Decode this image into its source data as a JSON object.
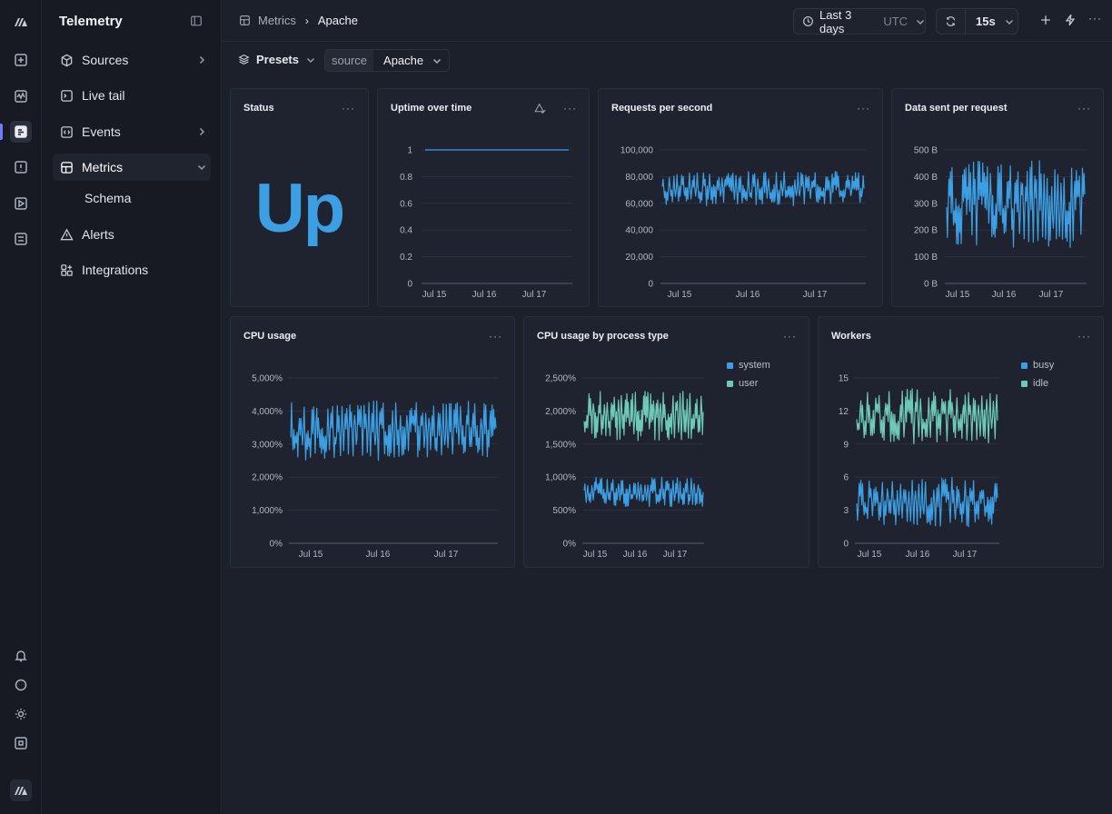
{
  "app": {
    "title": "Telemetry"
  },
  "sidebar": {
    "items": [
      {
        "label": "Sources",
        "icon": "cube-icon",
        "chevron": "right"
      },
      {
        "label": "Live tail",
        "icon": "terminal-icon",
        "chevron": ""
      },
      {
        "label": "Events",
        "icon": "code-icon",
        "chevron": "right"
      },
      {
        "label": "Metrics",
        "icon": "grid-icon",
        "chevron": "down",
        "active": true
      },
      {
        "label": "Alerts",
        "icon": "warning-icon",
        "chevron": ""
      },
      {
        "label": "Integrations",
        "icon": "integrations-icon",
        "chevron": ""
      }
    ],
    "sub_item": "Schema"
  },
  "breadcrumb": {
    "parent": "Metrics",
    "current": "Apache"
  },
  "time_range": {
    "label": "Last 3 days",
    "timezone": "UTC"
  },
  "refresh": {
    "interval": "15s"
  },
  "filters": {
    "presets_label": "Presets",
    "source_key": "source",
    "source_value": "Apache"
  },
  "colors": {
    "accent": "#6e7bff",
    "series_blue": "#3d9fe3",
    "series_teal": "#6ec9b9"
  },
  "panels": {
    "status": {
      "title": "Status",
      "value": "Up",
      "menu": "···"
    },
    "uptime": {
      "title": "Uptime over time",
      "menu": "···"
    },
    "rps": {
      "title": "Requests per second",
      "menu": "···"
    },
    "data_sent": {
      "title": "Data sent per request",
      "menu": "···"
    },
    "cpu": {
      "title": "CPU usage",
      "menu": "···"
    },
    "cpu_proc": {
      "title": "CPU usage by process type",
      "menu": "···"
    },
    "workers": {
      "title": "Workers",
      "menu": "···"
    }
  },
  "chart_data": [
    {
      "id": "uptime",
      "type": "line",
      "title": "Uptime over time",
      "x_ticks": [
        "Jul 15",
        "Jul 16",
        "Jul 17"
      ],
      "y_ticks": [
        "0",
        "0.2",
        "0.4",
        "0.6",
        "0.8",
        "1"
      ],
      "ylim": [
        0,
        1
      ],
      "series": [
        {
          "values": [
            1,
            1,
            1,
            1,
            1
          ],
          "color": "#3d9fe3"
        }
      ]
    },
    {
      "id": "rps",
      "type": "line",
      "title": "Requests per second",
      "x_ticks": [
        "Jul 15",
        "Jul 16",
        "Jul 17"
      ],
      "y_ticks": [
        "0",
        "20,000",
        "40,000",
        "60,000",
        "80,000",
        "100,000"
      ],
      "ylim": [
        0,
        100000
      ],
      "series": [
        {
          "range": [
            58000,
            84000
          ],
          "color": "#3d9fe3"
        }
      ]
    },
    {
      "id": "data_sent",
      "type": "line",
      "title": "Data sent per request",
      "x_ticks": [
        "Jul 15",
        "Jul 16",
        "Jul 17"
      ],
      "y_ticks": [
        "0 B",
        "100 B",
        "200 B",
        "300 B",
        "400 B",
        "500 B"
      ],
      "ylim": [
        0,
        500
      ],
      "series": [
        {
          "range": [
            130,
            460
          ],
          "color": "#3d9fe3"
        }
      ]
    },
    {
      "id": "cpu",
      "type": "line",
      "title": "CPU usage",
      "x_ticks": [
        "Jul 15",
        "Jul 16",
        "Jul 17"
      ],
      "y_ticks": [
        "0%",
        "1,000%",
        "2,000%",
        "3,000%",
        "4,000%",
        "5,000%"
      ],
      "ylim": [
        0,
        5000
      ],
      "series": [
        {
          "range": [
            2500,
            4300
          ],
          "color": "#3d9fe3"
        }
      ]
    },
    {
      "id": "cpu_proc",
      "type": "line",
      "title": "CPU usage by process type",
      "x_ticks": [
        "Jul 15",
        "Jul 16",
        "Jul 17"
      ],
      "y_ticks": [
        "0%",
        "500%",
        "1,000%",
        "1,500%",
        "2,000%",
        "2,500%"
      ],
      "ylim": [
        0,
        2500
      ],
      "series": [
        {
          "name": "system",
          "range": [
            550,
            1000
          ],
          "color": "#3d9fe3"
        },
        {
          "name": "user",
          "range": [
            1550,
            2300
          ],
          "color": "#6ec9b9"
        }
      ]
    },
    {
      "id": "workers",
      "type": "line",
      "title": "Workers",
      "x_ticks": [
        "Jul 15",
        "Jul 16",
        "Jul 17"
      ],
      "y_ticks": [
        "0",
        "3",
        "6",
        "9",
        "12",
        "15"
      ],
      "ylim": [
        0,
        15
      ],
      "series": [
        {
          "name": "busy",
          "range": [
            1.5,
            6
          ],
          "color": "#3d9fe3"
        },
        {
          "name": "idle",
          "range": [
            9,
            14
          ],
          "color": "#6ec9b9"
        }
      ]
    }
  ]
}
